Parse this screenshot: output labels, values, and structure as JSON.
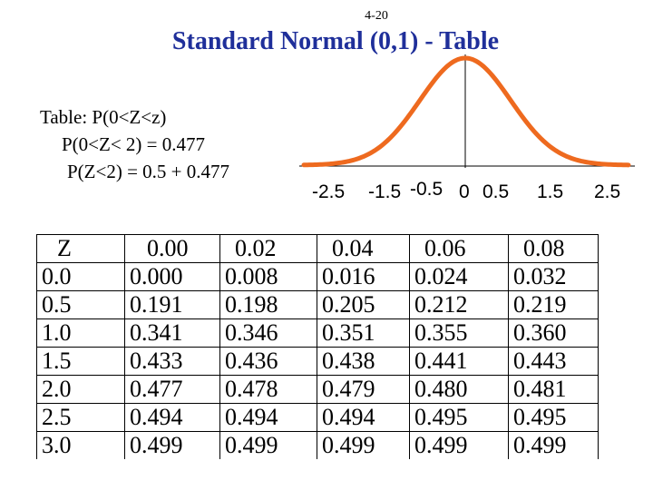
{
  "slide_number": "4-20",
  "title": "Standard Normal (0,1) - Table",
  "text_lines": [
    "Table: P(0<Z<z)",
    "P(0<Z< 2) = 0.477",
    "P(Z<2) = 0.5 + 0.477"
  ],
  "curve": {
    "tick_labels": [
      "-2.5",
      "-1.5",
      "-0.5",
      "0",
      "0.5",
      "1.5",
      "2.5"
    ],
    "curve_color": "#ee6a1f"
  },
  "table": {
    "header": [
      "Z",
      "0.00",
      "0.02",
      "0.04",
      "0.06",
      "0.08"
    ],
    "rows": [
      [
        "0.0",
        "0.000",
        "0.008",
        "0.016",
        "0.024",
        "0.032"
      ],
      [
        "0.5",
        "0.191",
        "0.198",
        "0.205",
        "0.212",
        "0.219"
      ],
      [
        "1.0",
        "0.341",
        "0.346",
        "0.351",
        "0.355",
        "0.360"
      ],
      [
        "1.5",
        "0.433",
        "0.436",
        "0.438",
        "0.441",
        "0.443"
      ],
      [
        "2.0",
        "0.477",
        "0.478",
        "0.479",
        "0.480",
        "0.481"
      ],
      [
        "2.5",
        "0.494",
        "0.494",
        "0.494",
        "0.495",
        "0.495"
      ],
      [
        "3.0",
        "0.499",
        "0.499",
        "0.499",
        "0.499",
        "0.499"
      ]
    ]
  }
}
